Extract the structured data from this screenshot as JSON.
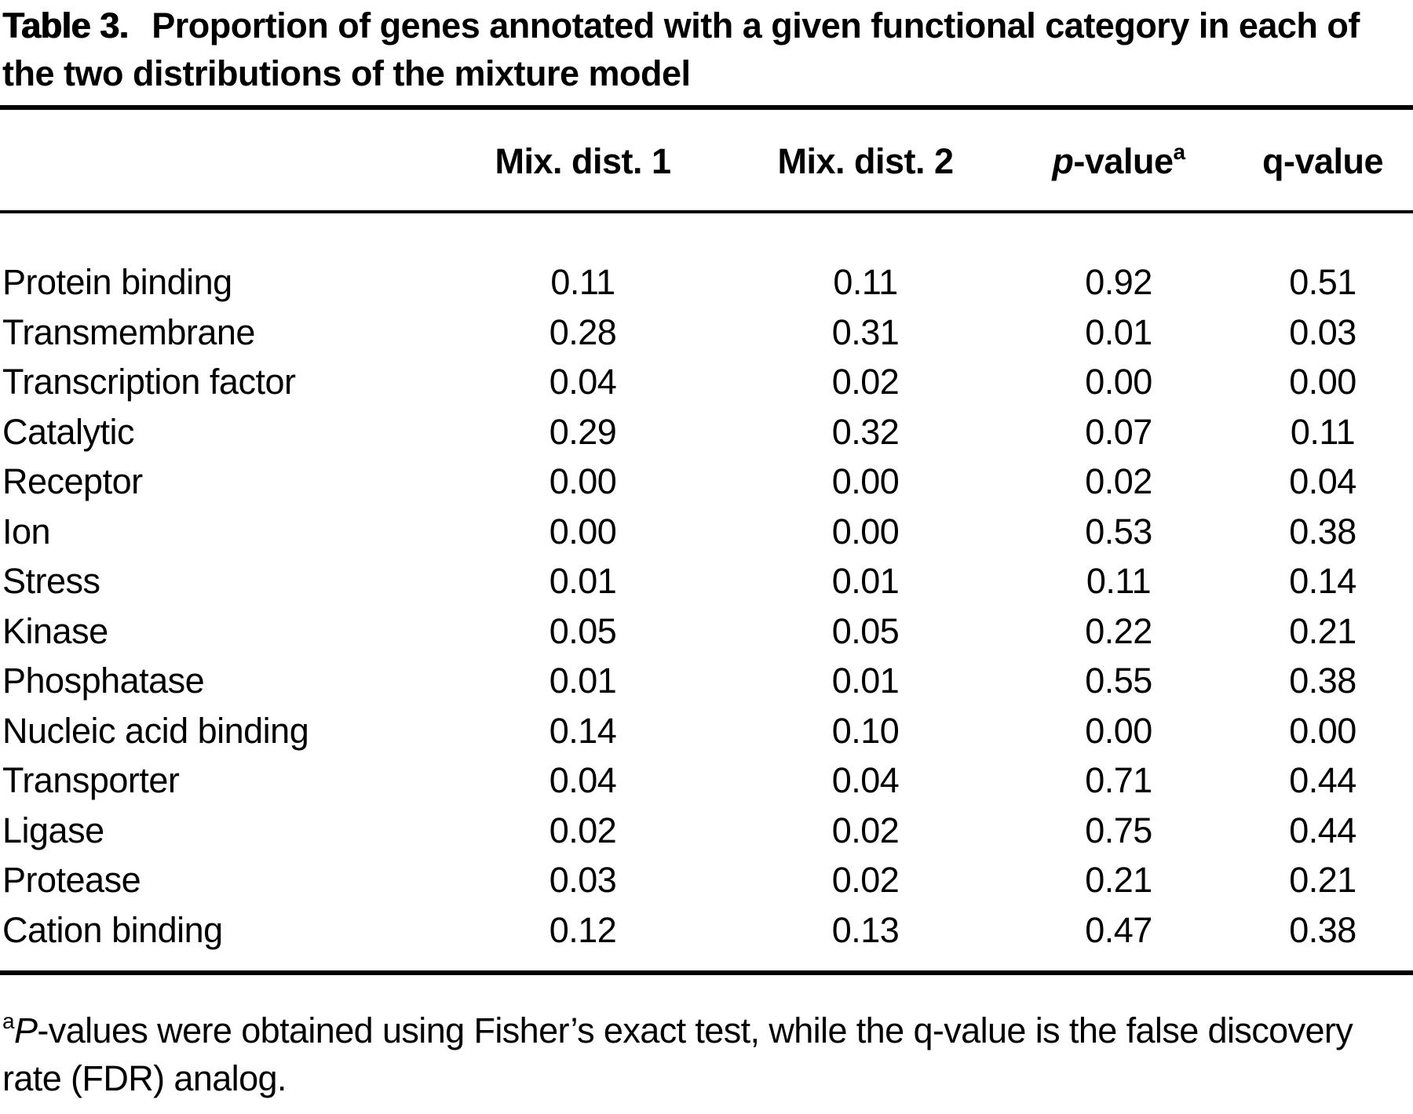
{
  "title": {
    "label": "Table 3.",
    "text": "Proportion of genes annotated with a given functional category in each of the two distributions of the mixture model"
  },
  "table": {
    "header": {
      "category": "",
      "mix1": "Mix. dist. 1",
      "mix2": "Mix. dist. 2",
      "p_italic": "p",
      "p_rest": "-value",
      "p_sup": "a",
      "q": "q-value"
    },
    "rows": [
      {
        "category": "Protein binding",
        "mix1": "0.11",
        "mix2": "0.11",
        "p": "0.92",
        "q": "0.51"
      },
      {
        "category": "Transmembrane",
        "mix1": "0.28",
        "mix2": "0.31",
        "p": "0.01",
        "q": "0.03"
      },
      {
        "category": "Transcription factor",
        "mix1": "0.04",
        "mix2": "0.02",
        "p": "0.00",
        "q": "0.00"
      },
      {
        "category": "Catalytic",
        "mix1": "0.29",
        "mix2": "0.32",
        "p": "0.07",
        "q": "0.11"
      },
      {
        "category": "Receptor",
        "mix1": "0.00",
        "mix2": "0.00",
        "p": "0.02",
        "q": "0.04"
      },
      {
        "category": "Ion",
        "mix1": "0.00",
        "mix2": "0.00",
        "p": "0.53",
        "q": "0.38"
      },
      {
        "category": "Stress",
        "mix1": "0.01",
        "mix2": "0.01",
        "p": "0.11",
        "q": "0.14"
      },
      {
        "category": "Kinase",
        "mix1": "0.05",
        "mix2": "0.05",
        "p": "0.22",
        "q": "0.21"
      },
      {
        "category": "Phosphatase",
        "mix1": "0.01",
        "mix2": "0.01",
        "p": "0.55",
        "q": "0.38"
      },
      {
        "category": "Nucleic acid binding",
        "mix1": "0.14",
        "mix2": "0.10",
        "p": "0.00",
        "q": "0.00"
      },
      {
        "category": "Transporter",
        "mix1": "0.04",
        "mix2": "0.04",
        "p": "0.71",
        "q": "0.44"
      },
      {
        "category": "Ligase",
        "mix1": "0.02",
        "mix2": "0.02",
        "p": "0.75",
        "q": "0.44"
      },
      {
        "category": "Protease",
        "mix1": "0.03",
        "mix2": "0.02",
        "p": "0.21",
        "q": "0.21"
      },
      {
        "category": "Cation binding",
        "mix1": "0.12",
        "mix2": "0.13",
        "p": "0.47",
        "q": "0.38"
      }
    ]
  },
  "footnote": {
    "sup": "a",
    "italic": "P",
    "text": "-values were obtained using Fisher’s exact test, while the q-value is the false discovery rate (FDR) analog."
  },
  "colors": {
    "text": "#000000",
    "background": "#ffffff",
    "rule": "#000000"
  }
}
